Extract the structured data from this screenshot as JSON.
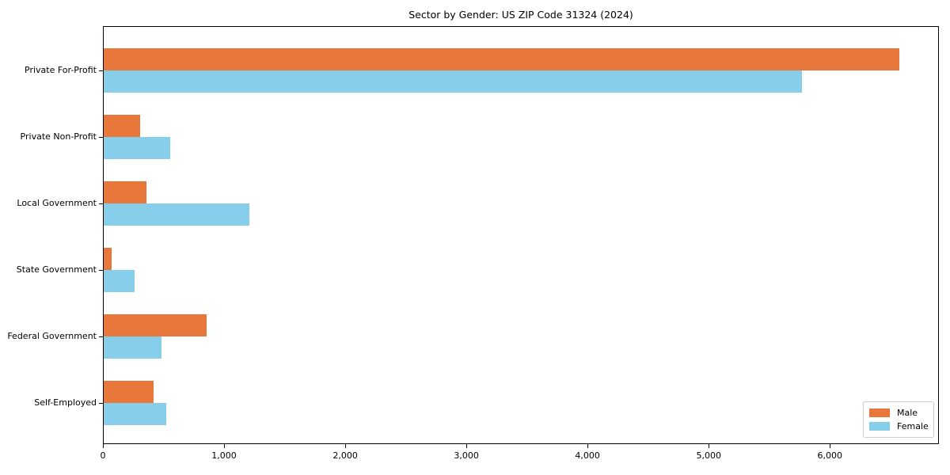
{
  "chart_data": {
    "type": "bar",
    "orientation": "horizontal",
    "title": "Sector by Gender: US ZIP Code 31324 (2024)",
    "categories": [
      "Private For-Profit",
      "Private Non-Profit",
      "Local Government",
      "State Government",
      "Federal Government",
      "Self-Employed"
    ],
    "series": [
      {
        "name": "Male",
        "color": "#e8773b",
        "values": [
          6570,
          300,
          350,
          65,
          850,
          410
        ]
      },
      {
        "name": "Female",
        "color": "#87ceeb",
        "values": [
          5760,
          550,
          1200,
          255,
          480,
          515
        ]
      }
    ],
    "xlabel": "",
    "ylabel": "",
    "xlim": [
      0,
      6900
    ],
    "xticks": [
      0,
      1000,
      2000,
      3000,
      4000,
      5000,
      6000
    ],
    "xtick_labels": [
      "0",
      "1,000",
      "2,000",
      "3,000",
      "4,000",
      "5,000",
      "6,000"
    ],
    "grid": false,
    "legend_position": "lower right",
    "axis_color": "#000000",
    "background_color": "#ffffff"
  }
}
